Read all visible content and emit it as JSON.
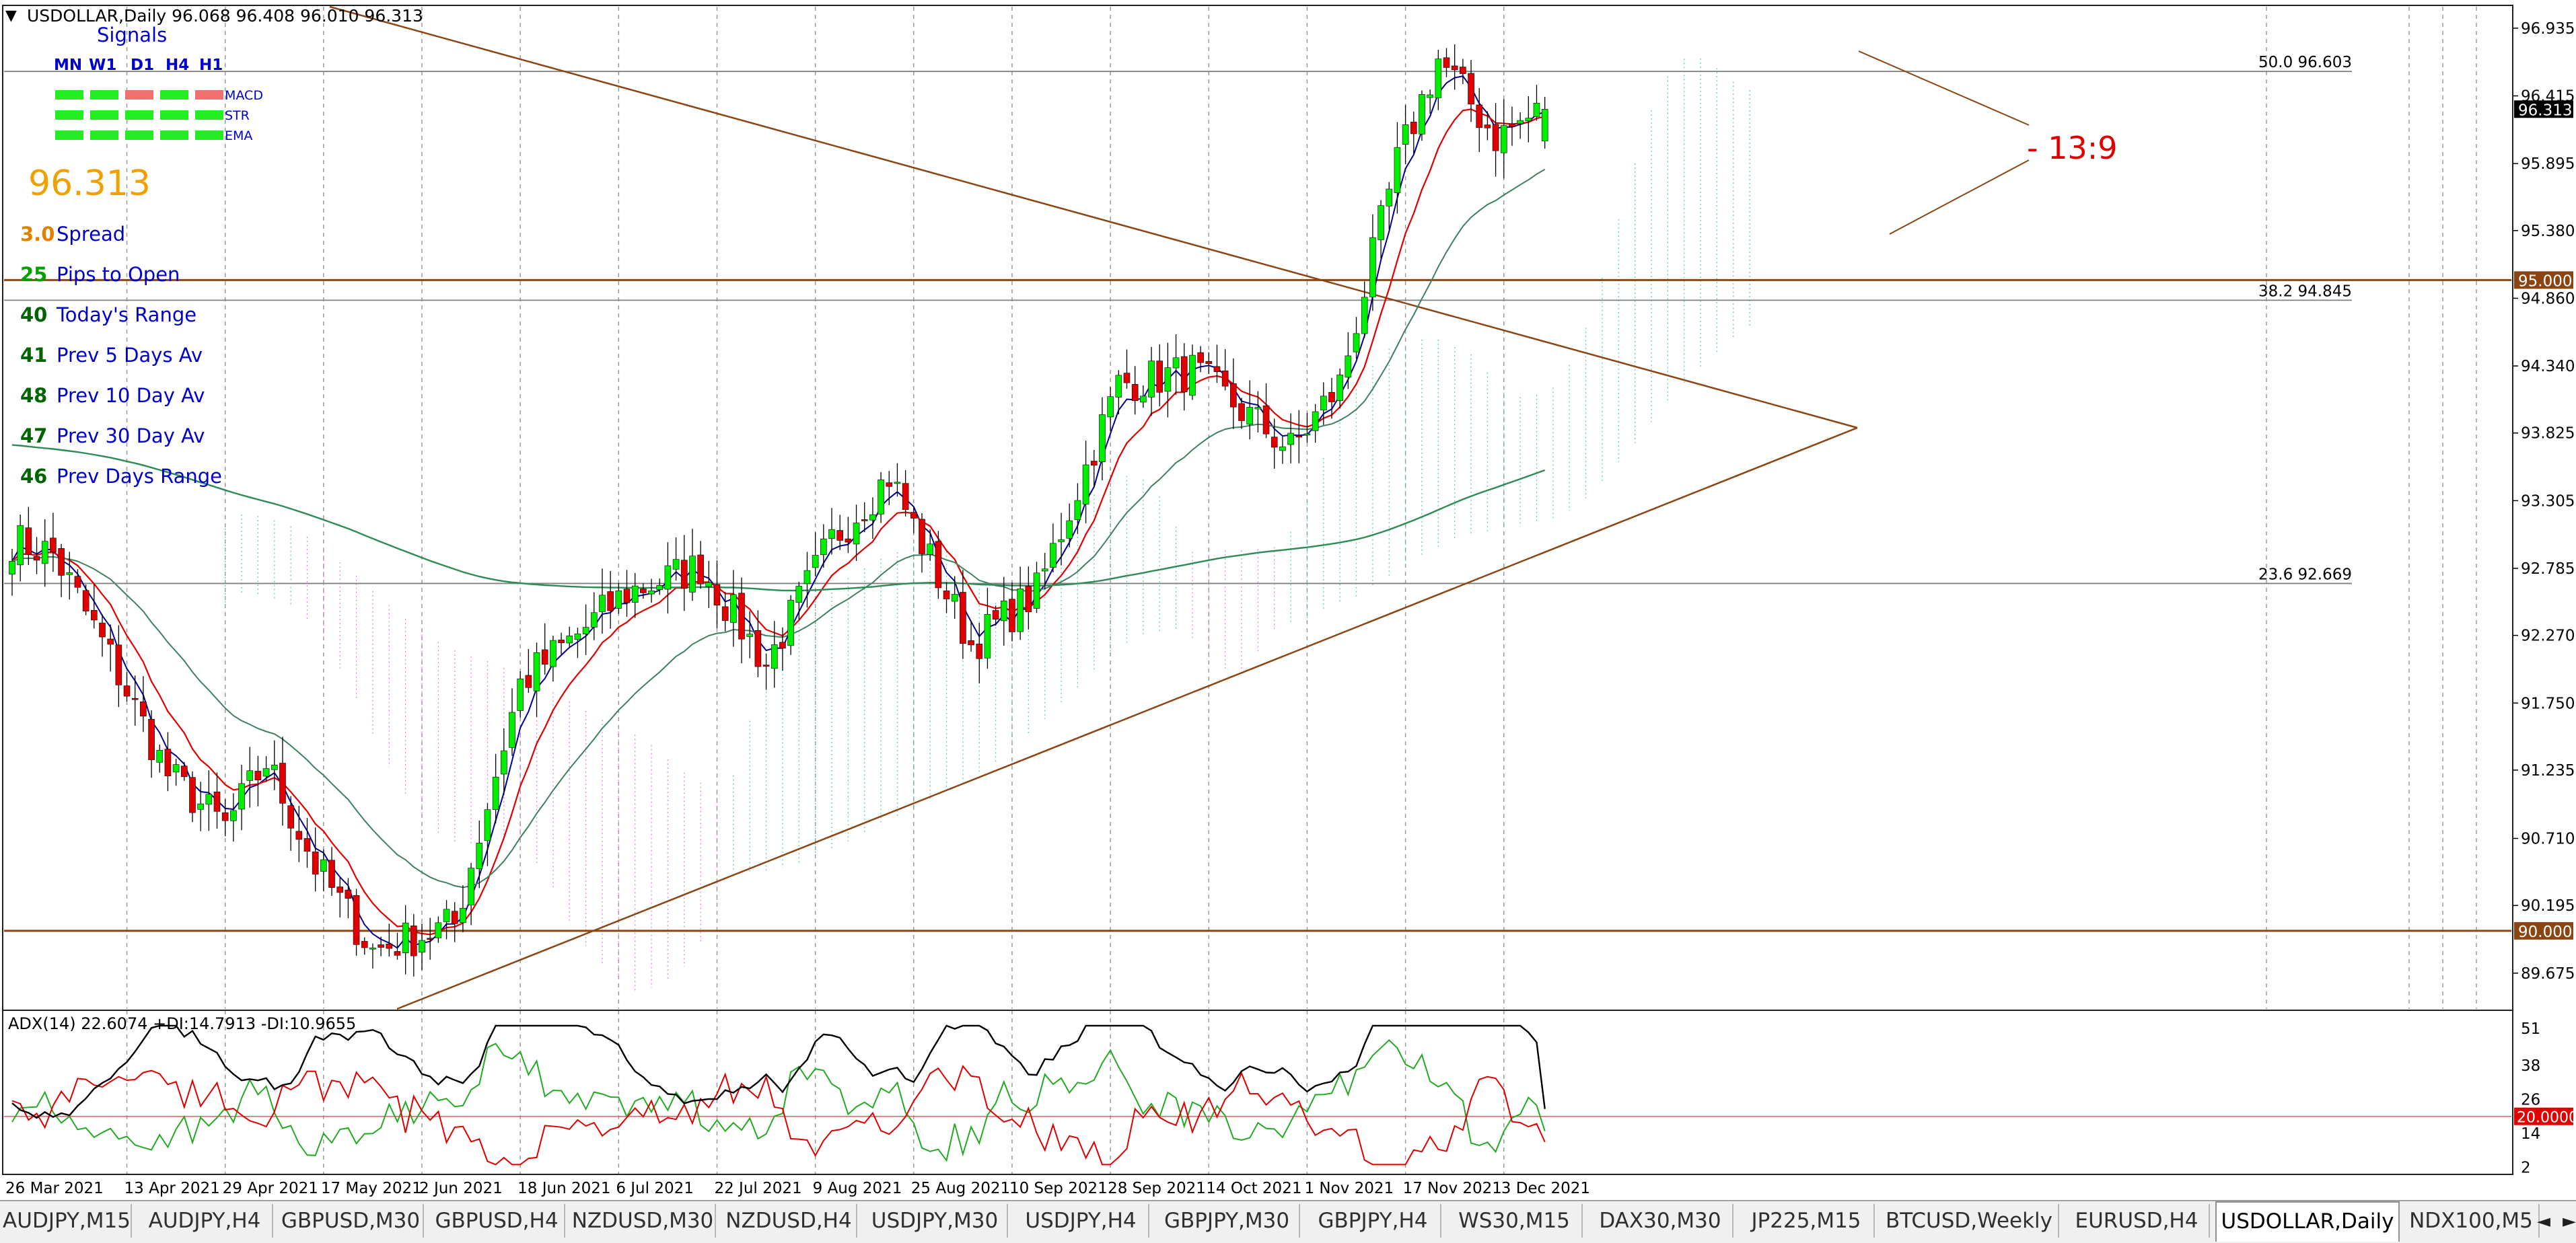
{
  "window": {
    "title": "USDOLLAR,Daily  96.068 96.408 96.010 96.313",
    "menu_arrow": "▼"
  },
  "signals_panel": {
    "title": "Signals",
    "timeframes": [
      "MN",
      "W1",
      "D1",
      "H4",
      "H1"
    ],
    "indicators": [
      {
        "name": "MACD",
        "states": [
          "green",
          "green",
          "red",
          "green",
          "red"
        ]
      },
      {
        "name": "STR",
        "states": [
          "green",
          "green",
          "green",
          "green",
          "green"
        ]
      },
      {
        "name": "EMA",
        "states": [
          "green",
          "green",
          "green",
          "green",
          "green"
        ]
      }
    ],
    "price": "96.313",
    "stats": [
      {
        "value": "3.0",
        "label": "Spread",
        "color": "#e08000"
      },
      {
        "value": "25",
        "label": "Pips to Open",
        "color": "#00a000"
      },
      {
        "value": "40",
        "label": "Today's Range",
        "color": "#006400"
      },
      {
        "value": "41",
        "label": "Prev 5 Days Av",
        "color": "#006400"
      },
      {
        "value": "48",
        "label": "Prev 10 Day Av",
        "color": "#006400"
      },
      {
        "value": "47",
        "label": "Prev 30 Day Av",
        "color": "#006400"
      },
      {
        "value": "46",
        "label": "Prev Days Range",
        "color": "#006400"
      }
    ]
  },
  "annotation": {
    "text": "- 13:9",
    "color": "#e00000"
  },
  "fib_levels": [
    {
      "ratio": "50.0",
      "price": "96.603",
      "value": 96.603
    },
    {
      "ratio": "38.2",
      "price": "94.845",
      "value": 94.845
    },
    {
      "ratio": "23.6",
      "price": "92.669",
      "value": 92.669
    }
  ],
  "horizontal_levels": [
    {
      "label": "95.000",
      "value": 95.0
    },
    {
      "label": "90.000",
      "value": 90.0
    }
  ],
  "current_price_label": "96.313",
  "price_axis_labels": [
    "96.935",
    "96.415",
    "95.895",
    "95.380",
    "94.860",
    "94.340",
    "93.825",
    "93.305",
    "92.785",
    "92.270",
    "91.750",
    "91.235",
    "90.710",
    "90.195",
    "89.675"
  ],
  "date_axis_labels": [
    "26 Mar 2021",
    "13 Apr 2021",
    "29 Apr 2021",
    "17 May 2021",
    "2 Jun 2021",
    "18 Jun 2021",
    "6 Jul 2021",
    "22 Jul 2021",
    "9 Aug 2021",
    "25 Aug 2021",
    "10 Sep 2021",
    "28 Sep 2021",
    "14 Oct 2021",
    "1 Nov 2021",
    "17 Nov 2021",
    "3 Dec 2021"
  ],
  "adx_panel": {
    "header": "ADX(14) 22.6074 +DI:14.7913 -DI:10.9655",
    "axis_labels": [
      "51",
      "38",
      "26",
      "14",
      "2"
    ],
    "level_label": "20.0000"
  },
  "chart_data": {
    "type": "candlestick",
    "symbol": "USDOLLAR",
    "timeframe": "Daily",
    "ohlc_last": {
      "open": 96.068,
      "high": 96.408,
      "low": 96.01,
      "close": 96.313
    },
    "ylim": [
      89.4,
      97.1
    ],
    "anchors": [
      {
        "x": "2021-03-24",
        "close": 93.0
      },
      {
        "x": "2021-03-31",
        "close": 92.9
      },
      {
        "x": "2021-04-09",
        "close": 92.1
      },
      {
        "x": "2021-04-20",
        "close": 91.2
      },
      {
        "x": "2021-04-29",
        "close": 90.8
      },
      {
        "x": "2021-05-06",
        "close": 91.3
      },
      {
        "x": "2021-05-14",
        "close": 90.5
      },
      {
        "x": "2021-05-25",
        "close": 89.85
      },
      {
        "x": "2021-06-08",
        "close": 90.05
      },
      {
        "x": "2021-06-18",
        "close": 91.9
      },
      {
        "x": "2021-07-07",
        "close": 92.6
      },
      {
        "x": "2021-07-20",
        "close": 92.8
      },
      {
        "x": "2021-07-30",
        "close": 92.05
      },
      {
        "x": "2021-08-11",
        "close": 93.0
      },
      {
        "x": "2021-08-20",
        "close": 93.5
      },
      {
        "x": "2021-09-03",
        "close": 92.2
      },
      {
        "x": "2021-09-15",
        "close": 92.6
      },
      {
        "x": "2021-09-29",
        "close": 94.2
      },
      {
        "x": "2021-10-12",
        "close": 94.3
      },
      {
        "x": "2021-10-28",
        "close": 93.7
      },
      {
        "x": "2021-11-05",
        "close": 94.2
      },
      {
        "x": "2021-11-16",
        "close": 95.9
      },
      {
        "x": "2021-11-23",
        "close": 96.7
      },
      {
        "x": "2021-12-02",
        "close": 96.1
      },
      {
        "x": "2021-12-10",
        "close": 96.313
      }
    ],
    "adx": {
      "adx": 22.6074,
      "plus_di": 14.7913,
      "minus_di": 10.9655,
      "level": 20.0,
      "ylim": [
        0,
        56
      ]
    }
  },
  "tabs": [
    {
      "label": "AUDJPY,M15",
      "active": false
    },
    {
      "label": "AUDJPY,H4",
      "active": false
    },
    {
      "label": "GBPUSD,M30",
      "active": false
    },
    {
      "label": "GBPUSD,H4",
      "active": false
    },
    {
      "label": "NZDUSD,M30",
      "active": false
    },
    {
      "label": "NZDUSD,H4",
      "active": false
    },
    {
      "label": "USDJPY,M30",
      "active": false
    },
    {
      "label": "USDJPY,H4",
      "active": false
    },
    {
      "label": "GBPJPY,M30",
      "active": false
    },
    {
      "label": "GBPJPY,H4",
      "active": false
    },
    {
      "label": "WS30,M15",
      "active": false
    },
    {
      "label": "DAX30,M30",
      "active": false
    },
    {
      "label": "JP225,M15",
      "active": false
    },
    {
      "label": "BTCUSD,Weekly",
      "active": false
    },
    {
      "label": "EURUSD,H4",
      "active": false
    },
    {
      "label": "USDOLLAR,Daily",
      "active": true
    },
    {
      "label": "NDX100,M5",
      "active": false
    }
  ],
  "tab_scroll": {
    "left": "◄",
    "right": "►"
  },
  "colors": {
    "bull": "#00ee00",
    "bear": "#e00000",
    "trend_line": "#8b4513",
    "level_line": "#8b4513",
    "fib_line": "#808080",
    "ema_fast": "#000090",
    "ema_red": "#e00000",
    "ema_slow": "#408060",
    "ema_long": "#2e8b57",
    "cloud_green": "#66cdaa",
    "cloud_pink": "#dd88dd",
    "adx_line": "#000000",
    "plus_di": "#22aa22",
    "minus_di": "#dd0000",
    "label_text": "#0000cc"
  }
}
